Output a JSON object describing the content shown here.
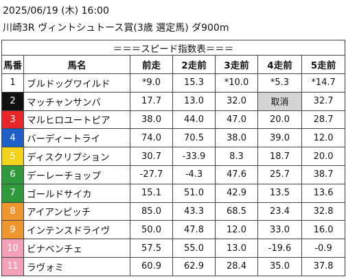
{
  "header": {
    "date": "2025/06/19 (木) 16:00",
    "race": "川崎3R ヴィントシュトース賞(3歳 選定馬) ダ900m"
  },
  "table": {
    "title": "＝＝＝スピード指数表＝＝＝",
    "columns": [
      "馬番",
      "馬名",
      "前走",
      "2走前",
      "3走前",
      "4走前",
      "5走前"
    ],
    "rows": [
      [
        "1",
        "ブルドッグワイルド",
        "*9.0",
        "15.3",
        "*10.0",
        "*5.3",
        "*14.7"
      ],
      [
        "2",
        "マッチャンサンバ",
        "17.7",
        "13.0",
        "32.0",
        "取消",
        "32.7"
      ],
      [
        "3",
        "マルヒロユートピア",
        "38.0",
        "44.0",
        "47.0",
        "20.0",
        "28.7"
      ],
      [
        "4",
        "バーディートライ",
        "74.0",
        "70.5",
        "38.0",
        "39.0",
        "12.0"
      ],
      [
        "5",
        "ディスクリプション",
        "30.7",
        "-33.9",
        "8.3",
        "18.7",
        "20.0"
      ],
      [
        "6",
        "デーレーチョップ",
        "-27.7",
        "-4.3",
        "47.6",
        "25.7",
        "38.7"
      ],
      [
        "7",
        "ゴールドサイカ",
        "15.1",
        "51.0",
        "42.9",
        "13.5",
        "13.6"
      ],
      [
        "8",
        "アイアンピッチ",
        "85.0",
        "43.3",
        "68.5",
        "23.4",
        "32.8"
      ],
      [
        "9",
        "インテンスドライヴ",
        "50.0",
        "47.8",
        "12.0",
        "33.0",
        "16.0"
      ],
      [
        "10",
        "ビナベンチェ",
        "57.5",
        "55.0",
        "13.0",
        "-19.6",
        "-0.9"
      ],
      [
        "11",
        "ラヴォミ",
        "60.9",
        "62.9",
        "28.4",
        "35.0",
        "37.8"
      ]
    ]
  }
}
